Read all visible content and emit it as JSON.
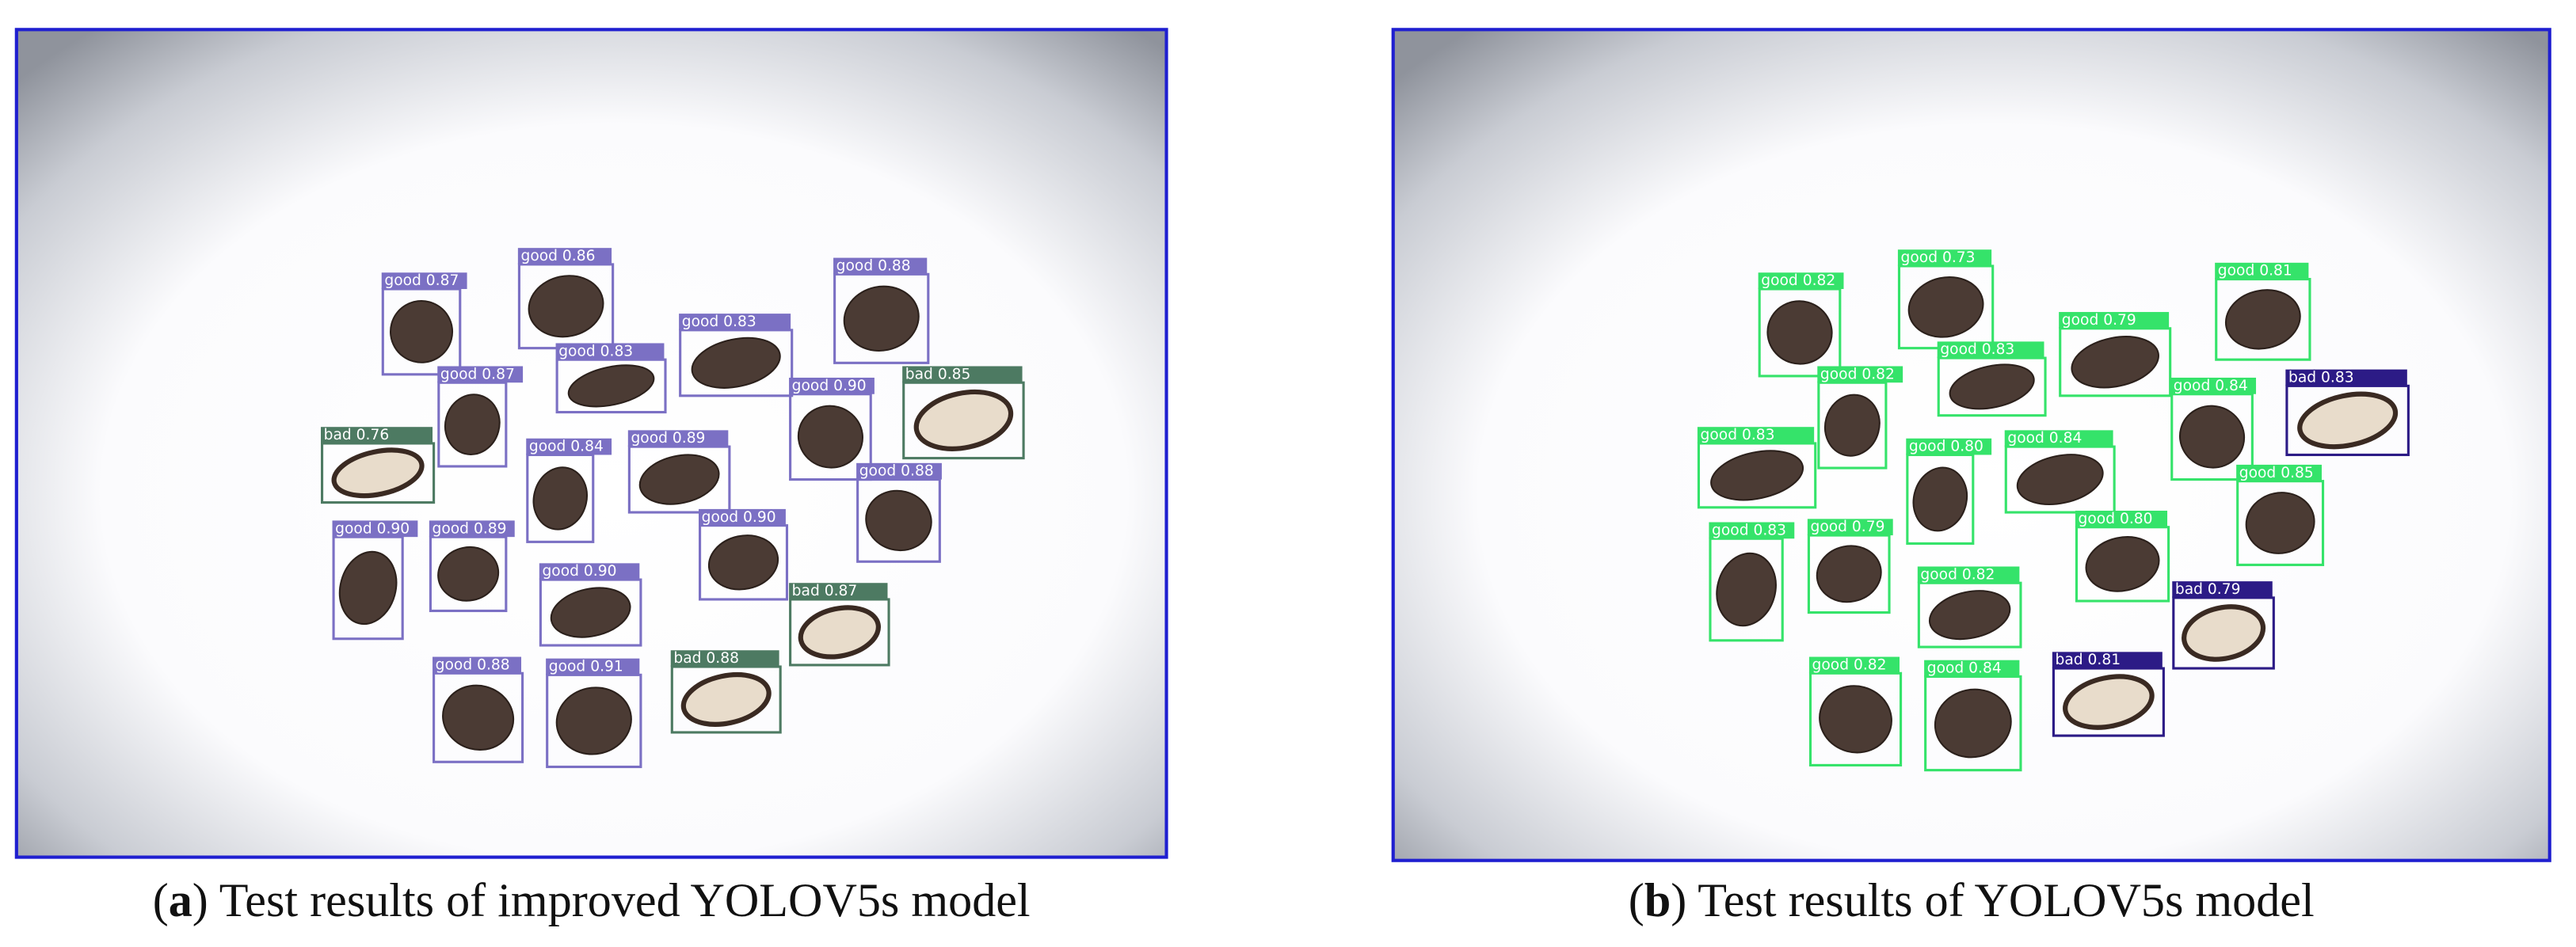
{
  "panels": [
    {
      "detections": [
        "good 0.87",
        "good 0.86",
        "good 0.88",
        "good 0.83",
        "good 0.83",
        "good 0.87",
        "good 0.90",
        "bad 0.85",
        "bad 0.76",
        "good 0.84",
        "good 0.89",
        "good 0.88",
        "good 0.90",
        "good 0.89",
        "good 0.90",
        "good 0.90",
        "bad 0.87",
        "good 0.88",
        "good 0.91",
        "bad 0.88"
      ],
      "caption": {
        "open": "(",
        "letter": "a",
        "text": ") Test results of improved YOLOV5s model"
      }
    },
    {
      "detections": [
        "good 0.82",
        "good 0.73",
        "good 0.81",
        "good 0.79",
        "good 0.83",
        "good 0.82",
        "good 0.84",
        "bad 0.83",
        "good 0.83",
        "good 0.80",
        "good 0.84",
        "good 0.85",
        "good 0.83",
        "good 0.79",
        "good 0.80",
        "good 0.82",
        "bad 0.79",
        "good 0.82",
        "good 0.84",
        "bad 0.81"
      ],
      "caption": {
        "open": "(",
        "letter": "b",
        "text": ") Test results of YOLOV5s model"
      }
    }
  ]
}
